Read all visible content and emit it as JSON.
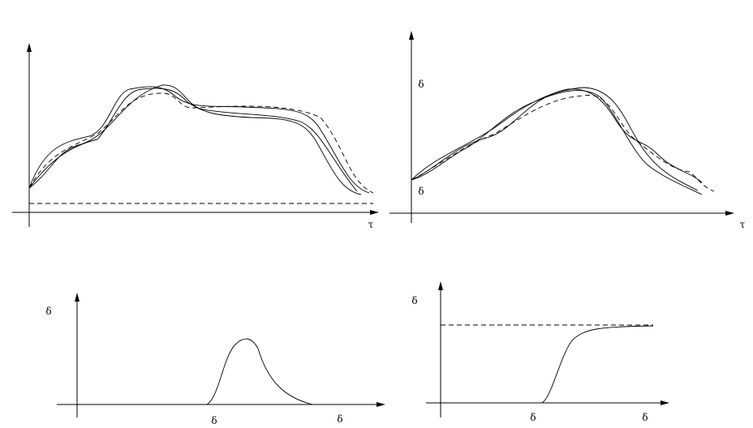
{
  "panels": [
    {
      "labels": [
        "τ"
      ]
    },
    {
      "labels": [
        "δ",
        "δ",
        "τ"
      ]
    },
    {
      "labels": [
        "δ",
        "δ",
        "δ"
      ]
    },
    {
      "labels": [
        "δ",
        "δ",
        "δ"
      ]
    }
  ]
}
